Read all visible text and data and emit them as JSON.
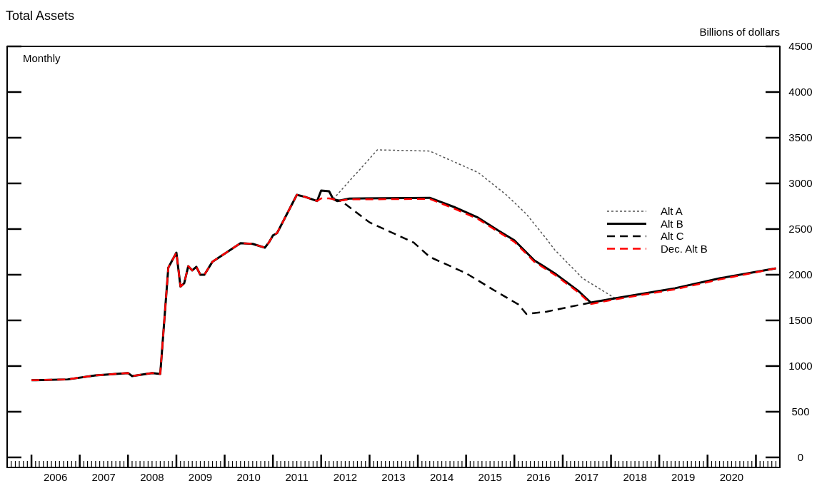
{
  "chart_data": {
    "type": "line",
    "title": "Total Assets",
    "ylabel": "Billions of dollars",
    "annotations": [
      "Monthly"
    ],
    "xlim": [
      "2005-07",
      "2021-07"
    ],
    "xticks": [
      {
        "value": "2006-01",
        "label": null
      },
      {
        "value": "2006-07",
        "label": "2006"
      },
      {
        "value": "2007-01",
        "label": null
      },
      {
        "value": "2007-07",
        "label": "2007"
      },
      {
        "value": "2008-01",
        "label": null
      },
      {
        "value": "2008-07",
        "label": "2008"
      },
      {
        "value": "2009-01",
        "label": null
      },
      {
        "value": "2009-07",
        "label": "2009"
      },
      {
        "value": "2010-01",
        "label": null
      },
      {
        "value": "2010-07",
        "label": "2010"
      },
      {
        "value": "2011-01",
        "label": null
      },
      {
        "value": "2011-07",
        "label": "2011"
      },
      {
        "value": "2012-01",
        "label": null
      },
      {
        "value": "2012-07",
        "label": "2012"
      },
      {
        "value": "2013-01",
        "label": null
      },
      {
        "value": "2013-07",
        "label": "2013"
      },
      {
        "value": "2014-01",
        "label": null
      },
      {
        "value": "2014-07",
        "label": "2014"
      },
      {
        "value": "2015-01",
        "label": null
      },
      {
        "value": "2015-07",
        "label": "2015"
      },
      {
        "value": "2016-01",
        "label": null
      },
      {
        "value": "2016-07",
        "label": "2016"
      },
      {
        "value": "2017-01",
        "label": null
      },
      {
        "value": "2017-07",
        "label": "2017"
      },
      {
        "value": "2018-01",
        "label": null
      },
      {
        "value": "2018-07",
        "label": "2018"
      },
      {
        "value": "2019-01",
        "label": null
      },
      {
        "value": "2019-07",
        "label": "2019"
      },
      {
        "value": "2020-01",
        "label": null
      },
      {
        "value": "2020-07",
        "label": "2020"
      },
      {
        "value": "2021-01",
        "label": null
      }
    ],
    "ylim": [
      -110,
      4500
    ],
    "yticks": [
      0,
      500,
      1000,
      1500,
      2000,
      2500,
      3000,
      3500,
      4000,
      4500
    ],
    "grid": false,
    "legend": "right",
    "marker": "none",
    "series": [
      {
        "name": "Alt A",
        "color": "#555555",
        "line_style": "dotted",
        "x": [
          "2012-04",
          "2013-03",
          "2014-04",
          "2015-04",
          "2015-11",
          "2016-04",
          "2016-09",
          "2016-11",
          "2017-06",
          "2018-02"
        ],
        "values": [
          2828,
          3367,
          3354,
          3120,
          2875,
          2664,
          2390,
          2273,
          1960,
          1742
        ]
      },
      {
        "name": "Alt B",
        "color": "#000000",
        "line_style": "solid",
        "x": [
          "2006-01",
          "2006-02",
          "2006-10",
          "2007-05",
          "2008-01",
          "2008-02",
          "2008-07",
          "2008-09",
          "2008-11",
          "2009-01",
          "2009-02",
          "2009-03",
          "2009-04",
          "2009-05",
          "2009-06",
          "2009-07",
          "2009-08",
          "2009-10",
          "2010-05",
          "2010-08",
          "2010-11",
          "2010-12",
          "2011-01",
          "2011-02",
          "2011-07",
          "2011-09",
          "2011-12",
          "2012-01",
          "2012-03",
          "2012-04",
          "2012-05",
          "2012-08",
          "2014-04",
          "2014-10",
          "2015-04",
          "2015-09",
          "2016-01",
          "2016-06",
          "2016-11",
          "2017-05",
          "2017-08",
          "2018-02",
          "2019-05",
          "2020-04",
          "2021-06"
        ],
        "values": [
          845,
          846,
          854,
          898,
          924,
          890,
          924,
          914,
          2078,
          2242,
          1870,
          1906,
          2094,
          2047,
          2086,
          2000,
          2000,
          2143,
          2346,
          2338,
          2297,
          2352,
          2430,
          2455,
          2875,
          2852,
          2807,
          2922,
          2914,
          2828,
          2807,
          2834,
          2842,
          2742,
          2625,
          2484,
          2377,
          2156,
          2016,
          1820,
          1695,
          1742,
          1852,
          1960,
          2070
        ]
      },
      {
        "name": "Alt C",
        "color": "#000000",
        "line_style": "dashed",
        "x": [
          "2012-04",
          "2012-06",
          "2013-01",
          "2013-12",
          "2014-04",
          "2015-01",
          "2015-08",
          "2016-02",
          "2016-04",
          "2016-09",
          "2017-08"
        ],
        "values": [
          2828,
          2807,
          2573,
          2352,
          2195,
          2016,
          1830,
          1674,
          1570,
          1596,
          1695
        ]
      },
      {
        "name": "Dec. Alt B",
        "color": "#ff0000",
        "line_style": "dashed",
        "x": [
          "2006-01",
          "2006-02",
          "2006-10",
          "2007-05",
          "2008-01",
          "2008-02",
          "2008-07",
          "2008-09",
          "2008-11",
          "2009-01",
          "2009-02",
          "2009-03",
          "2009-04",
          "2009-05",
          "2009-06",
          "2009-07",
          "2009-08",
          "2009-10",
          "2010-05",
          "2010-08",
          "2010-11",
          "2010-12",
          "2011-01",
          "2011-02",
          "2011-07",
          "2011-09",
          "2011-12",
          "2012-01",
          "2012-03",
          "2012-04",
          "2012-05",
          "2012-08",
          "2014-04",
          "2014-10",
          "2015-04",
          "2015-09",
          "2016-01",
          "2016-06",
          "2016-11",
          "2017-05",
          "2017-08",
          "2018-02",
          "2019-05",
          "2020-04",
          "2021-06"
        ],
        "values": [
          845,
          846,
          854,
          898,
          924,
          890,
          924,
          914,
          2078,
          2242,
          1870,
          1906,
          2094,
          2047,
          2086,
          2000,
          2000,
          2143,
          2346,
          2338,
          2297,
          2352,
          2430,
          2455,
          2875,
          2852,
          2807,
          2836,
          2836,
          2828,
          2807,
          2825,
          2830,
          2725,
          2610,
          2470,
          2360,
          2140,
          2000,
          1805,
          1680,
          1730,
          1840,
          1948,
          2070
        ]
      }
    ]
  }
}
